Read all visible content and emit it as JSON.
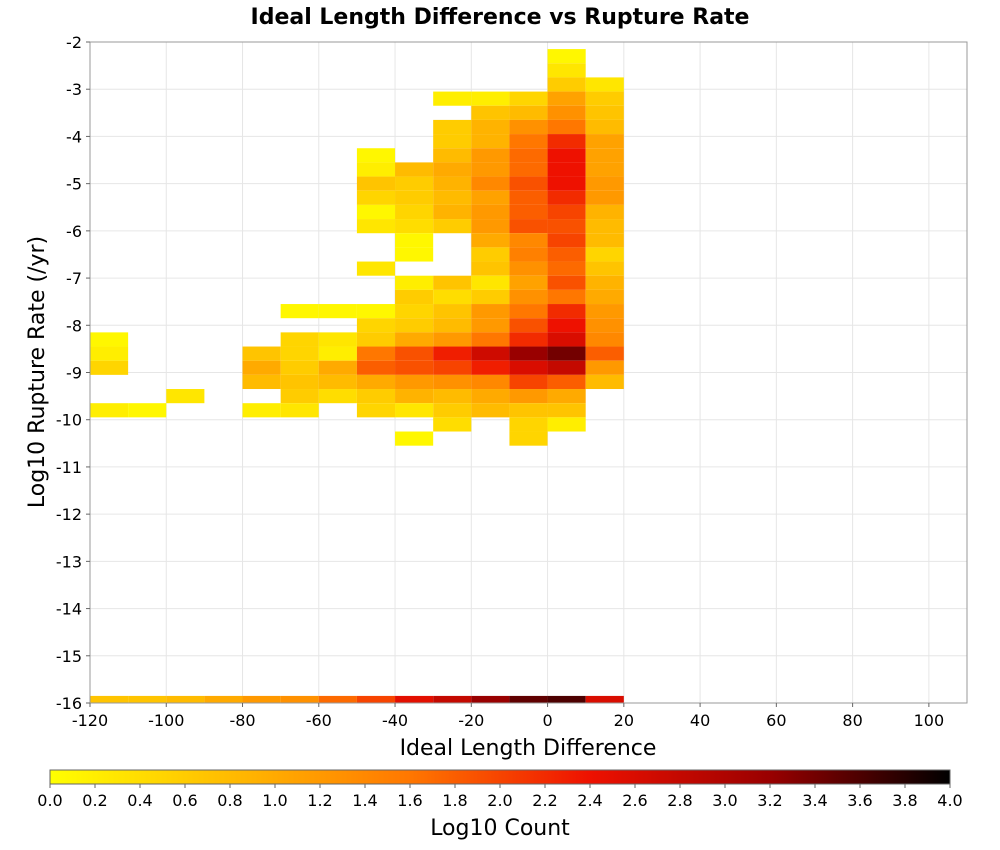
{
  "chart_data": {
    "type": "heatmap",
    "title": "Ideal Length Difference vs Rupture Rate",
    "xlabel": "Ideal Length Difference",
    "ylabel": "Log10 Rupture Rate (/yr)",
    "colorbar_label": "Log10 Count",
    "xlim": [
      -120,
      110
    ],
    "ylim": [
      -16,
      -2
    ],
    "x_ticks": [
      "-120",
      "-100",
      "-80",
      "-60",
      "-40",
      "-20",
      "0",
      "20",
      "40",
      "60",
      "80",
      "100"
    ],
    "y_ticks": [
      "-2",
      "-3",
      "-4",
      "-5",
      "-6",
      "-7",
      "-8",
      "-9",
      "-10",
      "-11",
      "-12",
      "-13",
      "-14",
      "-15",
      "-16"
    ],
    "colorbar_ticks": [
      "0.0",
      "0.2",
      "0.4",
      "0.6",
      "0.8",
      "1.0",
      "1.2",
      "1.4",
      "1.6",
      "1.8",
      "2.0",
      "2.2",
      "2.4",
      "2.6",
      "2.8",
      "3.0",
      "3.2",
      "3.4",
      "3.6",
      "3.8",
      "4.0"
    ],
    "color_range": [
      0,
      4
    ],
    "colormap": [
      "#ffff00",
      "#ffbb00",
      "#ff7700",
      "#ee1100",
      "#990000",
      "#000000"
    ],
    "bin_width_x": 10,
    "bin_height_y": 0.3,
    "grid": true,
    "colorbar_position": "bottom",
    "cells": [
      [
        -120,
        -8.3,
        0.1
      ],
      [
        -120,
        -8.6,
        0.2
      ],
      [
        -120,
        -8.9,
        0.5
      ],
      [
        -120,
        -9.8,
        0.2
      ],
      [
        -110,
        -9.8,
        0.1
      ],
      [
        -100,
        -9.5,
        0.3
      ],
      [
        -80,
        -8.6,
        0.7
      ],
      [
        -80,
        -8.9,
        1.0
      ],
      [
        -80,
        -9.2,
        0.8
      ],
      [
        -80,
        -9.8,
        0.2
      ],
      [
        -70,
        -7.7,
        0.1
      ],
      [
        -70,
        -8.3,
        0.5
      ],
      [
        -70,
        -8.6,
        0.5
      ],
      [
        -70,
        -8.9,
        0.6
      ],
      [
        -70,
        -9.2,
        0.7
      ],
      [
        -70,
        -9.5,
        0.6
      ],
      [
        -70,
        -9.8,
        0.3
      ],
      [
        -60,
        -7.7,
        0.1
      ],
      [
        -60,
        -8.3,
        0.3
      ],
      [
        -60,
        -8.6,
        0.2
      ],
      [
        -60,
        -8.9,
        1.0
      ],
      [
        -60,
        -9.2,
        0.8
      ],
      [
        -60,
        -9.5,
        0.4
      ],
      [
        -50,
        -4.4,
        0.1
      ],
      [
        -50,
        -4.7,
        0.2
      ],
      [
        -50,
        -5.0,
        0.7
      ],
      [
        -50,
        -5.3,
        0.5
      ],
      [
        -50,
        -5.6,
        0.1
      ],
      [
        -50,
        -5.9,
        0.3
      ],
      [
        -50,
        -6.8,
        0.3
      ],
      [
        -50,
        -7.7,
        0.1
      ],
      [
        -50,
        -8.0,
        0.5
      ],
      [
        -50,
        -8.3,
        0.6
      ],
      [
        -50,
        -8.6,
        1.6
      ],
      [
        -50,
        -8.9,
        1.8
      ],
      [
        -50,
        -9.2,
        1.0
      ],
      [
        -50,
        -9.5,
        0.6
      ],
      [
        -50,
        -9.8,
        0.5
      ],
      [
        -40,
        -4.7,
        0.8
      ],
      [
        -40,
        -5.0,
        0.6
      ],
      [
        -40,
        -5.3,
        0.6
      ],
      [
        -40,
        -5.6,
        0.5
      ],
      [
        -40,
        -5.9,
        0.4
      ],
      [
        -40,
        -6.2,
        0.1
      ],
      [
        -40,
        -6.5,
        0.1
      ],
      [
        -40,
        -7.1,
        0.2
      ],
      [
        -40,
        -7.4,
        0.6
      ],
      [
        -40,
        -7.7,
        0.5
      ],
      [
        -40,
        -8.0,
        0.6
      ],
      [
        -40,
        -8.3,
        1.0
      ],
      [
        -40,
        -8.6,
        1.9
      ],
      [
        -40,
        -8.9,
        1.9
      ],
      [
        -40,
        -9.2,
        1.2
      ],
      [
        -40,
        -9.5,
        0.9
      ],
      [
        -40,
        -9.8,
        0.3
      ],
      [
        -40,
        -10.4,
        0.1
      ],
      [
        -30,
        -3.2,
        0.2
      ],
      [
        -30,
        -3.8,
        0.6
      ],
      [
        -30,
        -4.1,
        0.6
      ],
      [
        -30,
        -4.4,
        0.8
      ],
      [
        -30,
        -4.7,
        1.0
      ],
      [
        -30,
        -5.0,
        0.9
      ],
      [
        -30,
        -5.3,
        0.8
      ],
      [
        -30,
        -5.6,
        0.9
      ],
      [
        -30,
        -5.9,
        0.6
      ],
      [
        -30,
        -7.1,
        0.7
      ],
      [
        -30,
        -7.4,
        0.4
      ],
      [
        -30,
        -7.7,
        0.7
      ],
      [
        -30,
        -8.0,
        0.8
      ],
      [
        -30,
        -8.3,
        1.2
      ],
      [
        -30,
        -8.6,
        2.3
      ],
      [
        -30,
        -8.9,
        2.0
      ],
      [
        -30,
        -9.2,
        1.3
      ],
      [
        -30,
        -9.5,
        0.8
      ],
      [
        -30,
        -9.8,
        0.6
      ],
      [
        -30,
        -10.1,
        0.4
      ],
      [
        -20,
        -3.2,
        0.2
      ],
      [
        -20,
        -3.5,
        0.7
      ],
      [
        -20,
        -3.8,
        0.9
      ],
      [
        -20,
        -4.1,
        0.9
      ],
      [
        -20,
        -4.4,
        1.2
      ],
      [
        -20,
        -4.7,
        1.2
      ],
      [
        -20,
        -5.0,
        1.4
      ],
      [
        -20,
        -5.3,
        1.1
      ],
      [
        -20,
        -5.6,
        1.2
      ],
      [
        -20,
        -5.9,
        1.2
      ],
      [
        -20,
        -6.2,
        1.0
      ],
      [
        -20,
        -6.5,
        0.6
      ],
      [
        -20,
        -6.8,
        0.7
      ],
      [
        -20,
        -7.1,
        0.3
      ],
      [
        -20,
        -7.4,
        0.6
      ],
      [
        -20,
        -7.7,
        1.2
      ],
      [
        -20,
        -8.0,
        1.2
      ],
      [
        -20,
        -8.3,
        1.6
      ],
      [
        -20,
        -8.6,
        2.7
      ],
      [
        -20,
        -8.9,
        2.3
      ],
      [
        -20,
        -9.2,
        1.4
      ],
      [
        -20,
        -9.5,
        1.0
      ],
      [
        -20,
        -9.8,
        0.8
      ],
      [
        -10,
        -3.2,
        0.5
      ],
      [
        -10,
        -3.5,
        0.8
      ],
      [
        -10,
        -3.8,
        1.3
      ],
      [
        -10,
        -4.1,
        1.6
      ],
      [
        -10,
        -4.4,
        1.7
      ],
      [
        -10,
        -4.7,
        1.7
      ],
      [
        -10,
        -5.0,
        1.9
      ],
      [
        -10,
        -5.3,
        1.8
      ],
      [
        -10,
        -5.6,
        1.8
      ],
      [
        -10,
        -5.9,
        1.9
      ],
      [
        -10,
        -6.2,
        1.4
      ],
      [
        -10,
        -6.5,
        1.5
      ],
      [
        -10,
        -6.8,
        1.3
      ],
      [
        -10,
        -7.1,
        1.1
      ],
      [
        -10,
        -7.4,
        1.3
      ],
      [
        -10,
        -7.7,
        1.6
      ],
      [
        -10,
        -8.0,
        1.9
      ],
      [
        -10,
        -8.3,
        2.2
      ],
      [
        -10,
        -8.6,
        3.2
      ],
      [
        -10,
        -8.9,
        2.6
      ],
      [
        -10,
        -9.2,
        2.0
      ],
      [
        -10,
        -9.5,
        1.2
      ],
      [
        -10,
        -9.8,
        0.7
      ],
      [
        -10,
        -10.1,
        0.5
      ],
      [
        -10,
        -10.4,
        0.5
      ],
      [
        0,
        -2.3,
        0.1
      ],
      [
        0,
        -2.6,
        0.3
      ],
      [
        0,
        -2.9,
        0.6
      ],
      [
        0,
        -3.2,
        1.1
      ],
      [
        0,
        -3.5,
        1.3
      ],
      [
        0,
        -3.8,
        1.6
      ],
      [
        0,
        -4.1,
        2.2
      ],
      [
        0,
        -4.4,
        2.4
      ],
      [
        0,
        -4.7,
        2.4
      ],
      [
        0,
        -5.0,
        2.4
      ],
      [
        0,
        -5.3,
        2.2
      ],
      [
        0,
        -5.6,
        2.0
      ],
      [
        0,
        -5.9,
        1.9
      ],
      [
        0,
        -6.2,
        2.0
      ],
      [
        0,
        -6.5,
        1.8
      ],
      [
        0,
        -6.8,
        1.7
      ],
      [
        0,
        -7.1,
        1.9
      ],
      [
        0,
        -7.4,
        1.6
      ],
      [
        0,
        -7.7,
        2.2
      ],
      [
        0,
        -8.0,
        2.4
      ],
      [
        0,
        -8.3,
        2.6
      ],
      [
        0,
        -8.6,
        3.4
      ],
      [
        0,
        -8.9,
        2.8
      ],
      [
        0,
        -9.2,
        1.8
      ],
      [
        0,
        -9.5,
        1.0
      ],
      [
        0,
        -9.8,
        0.7
      ],
      [
        0,
        -10.1,
        0.2
      ],
      [
        10,
        -2.9,
        0.3
      ],
      [
        10,
        -3.2,
        0.6
      ],
      [
        10,
        -3.5,
        0.7
      ],
      [
        10,
        -3.8,
        0.8
      ],
      [
        10,
        -4.1,
        1.1
      ],
      [
        10,
        -4.4,
        1.1
      ],
      [
        10,
        -4.7,
        1.1
      ],
      [
        10,
        -5.0,
        1.2
      ],
      [
        10,
        -5.3,
        1.2
      ],
      [
        10,
        -5.6,
        0.9
      ],
      [
        10,
        -5.9,
        0.8
      ],
      [
        10,
        -6.2,
        0.8
      ],
      [
        10,
        -6.5,
        0.5
      ],
      [
        10,
        -6.8,
        0.7
      ],
      [
        10,
        -7.1,
        0.9
      ],
      [
        10,
        -7.4,
        1.0
      ],
      [
        10,
        -7.7,
        1.2
      ],
      [
        10,
        -8.0,
        1.3
      ],
      [
        10,
        -8.3,
        1.4
      ],
      [
        10,
        -8.6,
        1.8
      ],
      [
        10,
        -8.9,
        1.2
      ],
      [
        10,
        -9.2,
        0.8
      ],
      [
        -120,
        -16,
        0.7
      ],
      [
        -110,
        -16,
        0.7
      ],
      [
        -100,
        -16,
        0.8
      ],
      [
        -90,
        -16,
        1.0
      ],
      [
        -80,
        -16,
        1.2
      ],
      [
        -70,
        -16,
        1.3
      ],
      [
        -60,
        -16,
        1.7
      ],
      [
        -50,
        -16,
        2.0
      ],
      [
        -40,
        -16,
        2.5
      ],
      [
        -30,
        -16,
        2.8
      ],
      [
        -20,
        -16,
        3.2
      ],
      [
        -10,
        -16,
        3.5
      ],
      [
        0,
        -16,
        3.6
      ],
      [
        10,
        -16,
        2.6
      ]
    ]
  }
}
